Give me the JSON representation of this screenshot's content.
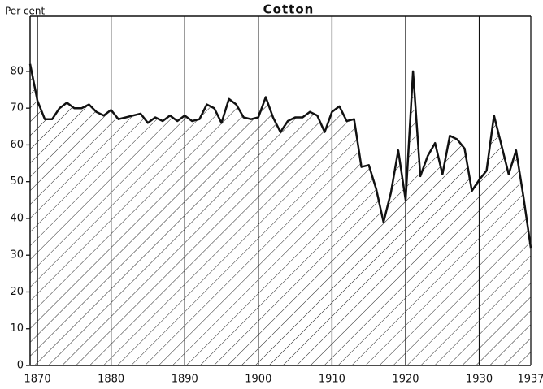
{
  "chart_data": {
    "type": "area",
    "title": "Cotton",
    "ylabel": "Per cent",
    "x": [
      1869,
      1870,
      1871,
      1872,
      1873,
      1874,
      1875,
      1876,
      1877,
      1878,
      1879,
      1880,
      1881,
      1882,
      1883,
      1884,
      1885,
      1886,
      1887,
      1888,
      1889,
      1890,
      1891,
      1892,
      1893,
      1894,
      1895,
      1896,
      1897,
      1898,
      1899,
      1900,
      1901,
      1902,
      1903,
      1904,
      1905,
      1906,
      1907,
      1908,
      1909,
      1910,
      1911,
      1912,
      1913,
      1914,
      1915,
      1916,
      1917,
      1918,
      1919,
      1920,
      1921,
      1922,
      1923,
      1924,
      1925,
      1926,
      1927,
      1928,
      1929,
      1930,
      1931,
      1932,
      1933,
      1934,
      1935,
      1936,
      1937
    ],
    "values": [
      82,
      72,
      67,
      67,
      70,
      71.5,
      70,
      70,
      71,
      69,
      68,
      69.5,
      67,
      67.5,
      68,
      68.5,
      66,
      67.5,
      66.5,
      68,
      66.5,
      68,
      66.5,
      67,
      71,
      70,
      66,
      72.5,
      71,
      67.5,
      67,
      67.5,
      73,
      67.5,
      63.5,
      66.5,
      67.5,
      67.5,
      69,
      68,
      63.5,
      69,
      70.5,
      66.5,
      67,
      54,
      54.5,
      48,
      39,
      47,
      58.5,
      45,
      80,
      51.5,
      57,
      60.5,
      52,
      62.5,
      61.5,
      59,
      47.5,
      50.5,
      53,
      68,
      60,
      52,
      58.5,
      46,
      32
    ],
    "color": "#111111",
    "xlim": [
      1869,
      1937
    ],
    "xticks": [
      1870,
      1880,
      1890,
      1900,
      1910,
      1920,
      1930,
      1937
    ],
    "ylim": [
      0,
      95
    ],
    "yticks": [
      0,
      10,
      20,
      30,
      40,
      50,
      60,
      70,
      80
    ],
    "grid": true
  }
}
